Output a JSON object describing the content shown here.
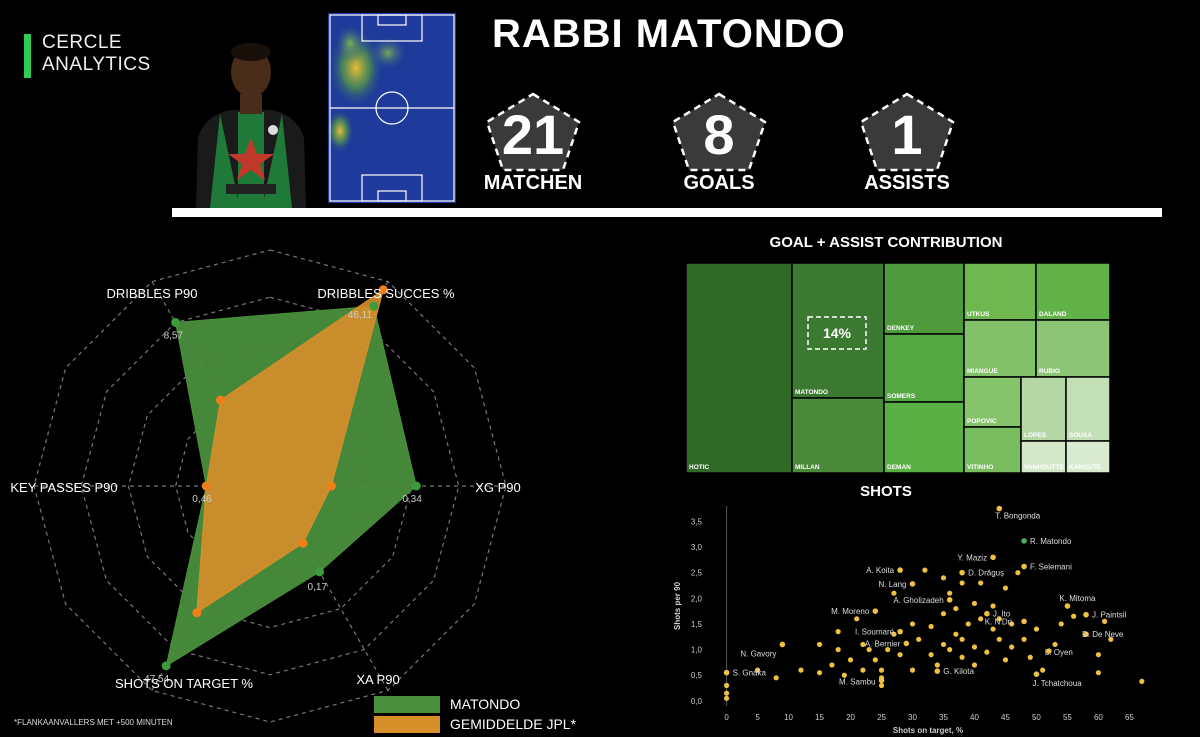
{
  "brand": {
    "line1": "CERCLE",
    "line2": "ANALYTICS",
    "accent": "#2ecc52"
  },
  "player": {
    "name": "RABBI MATONDO"
  },
  "stats": [
    {
      "value": "21",
      "label": "MATCHEN"
    },
    {
      "value": "8",
      "label": "GOALS"
    },
    {
      "value": "1",
      "label": "ASSISTS"
    }
  ],
  "legend": {
    "series_a": "MATONDO",
    "series_b": "GEMIDDELDE JPL*"
  },
  "footnote": "*FLANKAANVALLERS MET +500 MINUTEN",
  "chart_data": [
    {
      "type": "radar",
      "axes": [
        "DRIBBLES SUCCES %",
        "XG P90",
        "XA P90",
        "SHOTS ON TARGET %",
        "KEY PASSES P90",
        "DRIBBLES P90"
      ],
      "series": [
        {
          "name": "MATONDO",
          "color": "#4a8f3c",
          "values": [
            0.88,
            0.62,
            0.42,
            0.88,
            0.27,
            0.8
          ],
          "labels": [
            "46,11",
            "0,34",
            "0,17",
            "47,54",
            "0,46",
            "8,57"
          ]
        },
        {
          "name": "GEMIDDELDE JPL*",
          "color": "#d78f2a",
          "values": [
            0.96,
            0.26,
            0.28,
            0.62,
            0.27,
            0.42
          ]
        }
      ]
    },
    {
      "type": "treemap",
      "title": "GOAL + ASSIST CONTRIBUTION",
      "cells": [
        {
          "name": "HOTIC",
          "value": 16
        },
        {
          "name": "MATONDO",
          "value": 14,
          "highlight": "14%"
        },
        {
          "name": "MILLAN",
          "value": 10
        },
        {
          "name": "DENKEY",
          "value": 6
        },
        {
          "name": "SOMERS",
          "value": 5
        },
        {
          "name": "DEMAN",
          "value": 5
        },
        {
          "name": "UTKUS",
          "value": 3
        },
        {
          "name": "DALAND",
          "value": 3
        },
        {
          "name": "MIANGUE",
          "value": 3
        },
        {
          "name": "RUBIO",
          "value": 3
        },
        {
          "name": "POPOVIC",
          "value": 2
        },
        {
          "name": "VITINHO",
          "value": 2
        },
        {
          "name": "LOPES",
          "value": 1
        },
        {
          "name": "SOUSA",
          "value": 1
        },
        {
          "name": "VANHOUTTE",
          "value": 1
        },
        {
          "name": "KANOUTÉ",
          "value": 1
        }
      ]
    },
    {
      "type": "scatter",
      "title": "SHOTS",
      "xlabel": "Shots on target, %",
      "ylabel": "Shots per 90",
      "xlim": [
        -3,
        68
      ],
      "ylim": [
        -0.1,
        3.8
      ],
      "xticks": [
        0,
        5,
        10,
        15,
        20,
        25,
        30,
        35,
        40,
        45,
        50,
        55,
        60,
        65
      ],
      "yticks": [
        0.0,
        0.5,
        1.0,
        1.5,
        2.0,
        2.5,
        3.0,
        3.5
      ],
      "ytick_labels": [
        "0,0",
        "0,5",
        "1,0",
        "1,5",
        "2,0",
        "2,5",
        "3,0",
        "3,5"
      ],
      "point_color": "#f0c040",
      "highlight_color": "#4caf50",
      "labeled": [
        {
          "x": 44,
          "y": 3.75,
          "label": "T. Bongonda"
        },
        {
          "x": 48,
          "y": 3.12,
          "label": "R. Matondo",
          "highlight": true
        },
        {
          "x": 43,
          "y": 2.8,
          "label": "Y. Maziz"
        },
        {
          "x": 48,
          "y": 2.62,
          "label": "F. Selemani"
        },
        {
          "x": 28,
          "y": 2.55,
          "label": "A. Koita"
        },
        {
          "x": 38,
          "y": 2.5,
          "label": "D. Drăguș"
        },
        {
          "x": 30,
          "y": 2.28,
          "label": "N. Lang"
        },
        {
          "x": 36,
          "y": 1.97,
          "label": "A. Gholizadeh"
        },
        {
          "x": 55,
          "y": 1.85,
          "label": "K. Mitoma"
        },
        {
          "x": 24,
          "y": 1.75,
          "label": "M. Moreno"
        },
        {
          "x": 42,
          "y": 1.7,
          "label": "J. Ito"
        },
        {
          "x": 58,
          "y": 1.68,
          "label": "J. Paintsil"
        },
        {
          "x": 48,
          "y": 1.55,
          "label": "K. N'Dri"
        },
        {
          "x": 28,
          "y": 1.35,
          "label": "I. Soumaré"
        },
        {
          "x": 58,
          "y": 1.3,
          "label": "D. De Neve"
        },
        {
          "x": 9,
          "y": 1.1,
          "label": "N. Gavory"
        },
        {
          "x": 29,
          "y": 1.12,
          "label": "A. Bernier"
        },
        {
          "x": 52,
          "y": 0.97,
          "label": "L. Oyen"
        },
        {
          "x": 0,
          "y": 0.55,
          "label": "S. Gnaka"
        },
        {
          "x": 34,
          "y": 0.58,
          "label": "G. Kilota"
        },
        {
          "x": 50,
          "y": 0.52,
          "label": "J. Tchatchoua"
        },
        {
          "x": 25,
          "y": 0.4,
          "label": "M. Sambu"
        }
      ],
      "others": [
        [
          0,
          0.05
        ],
        [
          0,
          0.15
        ],
        [
          0,
          0.3
        ],
        [
          5,
          0.6
        ],
        [
          8,
          0.45
        ],
        [
          12,
          0.6
        ],
        [
          15,
          0.55
        ],
        [
          17,
          0.7
        ],
        [
          19,
          0.5
        ],
        [
          20,
          0.8
        ],
        [
          18,
          1.0
        ],
        [
          22,
          0.6
        ],
        [
          22,
          1.1
        ],
        [
          24,
          0.8
        ],
        [
          25,
          0.6
        ],
        [
          25,
          0.3
        ],
        [
          25,
          0.45
        ],
        [
          26,
          1.0
        ],
        [
          27,
          1.3
        ],
        [
          28,
          0.9
        ],
        [
          30,
          0.6
        ],
        [
          30,
          1.5
        ],
        [
          31,
          1.2
        ],
        [
          33,
          1.45
        ],
        [
          33,
          0.9
        ],
        [
          34,
          0.7
        ],
        [
          35,
          1.1
        ],
        [
          35,
          1.7
        ],
        [
          36,
          2.1
        ],
        [
          37,
          1.3
        ],
        [
          37,
          1.8
        ],
        [
          38,
          0.85
        ],
        [
          38,
          1.2
        ],
        [
          38,
          2.3
        ],
        [
          39,
          1.5
        ],
        [
          40,
          0.7
        ],
        [
          40,
          1.05
        ],
        [
          40,
          1.9
        ],
        [
          41,
          1.6
        ],
        [
          42,
          0.95
        ],
        [
          43,
          1.4
        ],
        [
          43,
          1.85
        ],
        [
          44,
          1.2
        ],
        [
          45,
          0.8
        ],
        [
          45,
          2.2
        ],
        [
          46,
          1.5
        ],
        [
          46,
          1.05
        ],
        [
          47,
          2.5
        ],
        [
          48,
          1.2
        ],
        [
          49,
          0.85
        ],
        [
          50,
          1.4
        ],
        [
          51,
          0.6
        ],
        [
          53,
          1.1
        ],
        [
          54,
          1.5
        ],
        [
          56,
          1.65
        ],
        [
          60,
          0.9
        ],
        [
          60,
          0.55
        ],
        [
          61,
          1.55
        ],
        [
          62,
          1.2
        ],
        [
          67,
          0.38
        ],
        [
          15,
          1.1
        ],
        [
          18,
          1.35
        ],
        [
          21,
          1.6
        ],
        [
          23,
          1.0
        ],
        [
          27,
          2.1
        ],
        [
          32,
          2.55
        ],
        [
          35,
          2.4
        ],
        [
          41,
          2.3
        ],
        [
          44,
          1.6
        ],
        [
          36,
          1.0
        ]
      ]
    }
  ]
}
